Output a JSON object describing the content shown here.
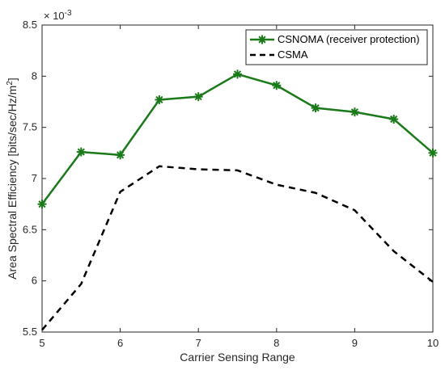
{
  "chart_data": {
    "type": "line",
    "xlabel": "Carrier Sensing Range",
    "ylabel_main": "Area Spectral Efficiency [bits/sec/Hz/m",
    "ylabel_sup": "2",
    "ylabel_end": "]",
    "exponent_base": "× 10",
    "exponent_power": "-3",
    "xlim": [
      5,
      10
    ],
    "ylim": [
      5.5,
      8.5
    ],
    "y_scale_factor": 0.001,
    "xticks": [
      "5",
      "6",
      "7",
      "8",
      "9",
      "10"
    ],
    "yticks": [
      "5.5",
      "6",
      "6.5",
      "7",
      "7.5",
      "8",
      "8.5"
    ],
    "grid": false,
    "legend_position": "top-right",
    "series": [
      {
        "name": "CSNOMA (receiver protection)",
        "color": "#1a7a1a",
        "style": "solid",
        "marker": "asterisk",
        "x": [
          5,
          5.5,
          6,
          6.5,
          7,
          7.5,
          8,
          8.5,
          9,
          9.5,
          10
        ],
        "y": [
          6.75,
          7.26,
          7.23,
          7.77,
          7.8,
          8.02,
          7.91,
          7.69,
          7.65,
          7.58,
          7.25
        ]
      },
      {
        "name": "CSMA",
        "color": "#000000",
        "style": "dashed",
        "marker": "none",
        "x": [
          5,
          5.5,
          6,
          6.5,
          7,
          7.5,
          8,
          8.5,
          9,
          9.5,
          10
        ],
        "y": [
          5.52,
          5.97,
          6.87,
          7.12,
          7.09,
          7.08,
          6.94,
          6.86,
          6.69,
          6.29,
          5.99
        ]
      }
    ]
  }
}
